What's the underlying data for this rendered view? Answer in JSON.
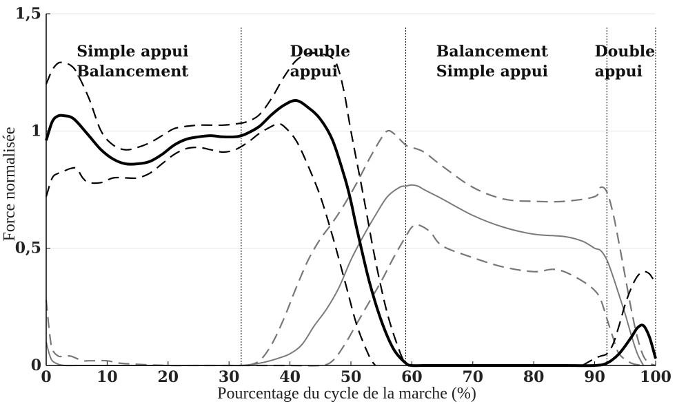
{
  "chart_data": {
    "type": "line",
    "title": "",
    "xlabel": "Pourcentage du cycle de la marche (%)",
    "ylabel": "Force normalisée",
    "xlim": [
      0,
      100
    ],
    "ylim": [
      0,
      1.5
    ],
    "x_ticks": [
      "0",
      "10",
      "20",
      "30",
      "40",
      "50",
      "60",
      "70",
      "80",
      "90",
      "100"
    ],
    "y_ticks": [
      "0",
      "0,5",
      "1",
      "1,5"
    ],
    "grid": "horizontal",
    "phase_boundaries": [
      32,
      59,
      92,
      100
    ],
    "phase_labels": [
      {
        "lines": [
          "Simple appui",
          "Balancement"
        ],
        "x": 5
      },
      {
        "lines": [
          "Double",
          "appui"
        ],
        "x": 40
      },
      {
        "lines": [
          "Balancement",
          "Simple appui"
        ],
        "x": 64
      },
      {
        "lines": [
          "Double",
          "appui"
        ],
        "x": 90
      }
    ],
    "colors": {
      "black": "#000000",
      "gray": "#7a7a7a",
      "gray_dashed": "#777777",
      "phase_line": "#000000",
      "grid": "#e6e6e6"
    },
    "series": [
      {
        "style": "black-solid",
        "x": [
          0,
          1,
          2,
          3,
          4,
          5,
          7,
          9,
          11,
          13,
          15,
          17,
          19,
          21,
          23,
          25,
          27,
          29,
          31,
          32,
          33,
          35,
          37,
          39,
          41,
          43,
          45,
          47,
          49,
          50,
          51,
          53,
          55,
          57,
          59,
          60,
          62,
          65,
          70,
          75,
          80,
          85,
          90,
          92,
          94,
          96,
          97,
          98,
          99,
          100
        ],
        "y": [
          0.96,
          1.04,
          1.065,
          1.065,
          1.06,
          1.04,
          0.98,
          0.92,
          0.88,
          0.86,
          0.86,
          0.87,
          0.9,
          0.94,
          0.965,
          0.975,
          0.98,
          0.975,
          0.975,
          0.98,
          0.99,
          1.02,
          1.07,
          1.11,
          1.13,
          1.1,
          1.05,
          0.96,
          0.8,
          0.7,
          0.58,
          0.36,
          0.19,
          0.07,
          0.01,
          0,
          0,
          0,
          0,
          0,
          0,
          0,
          0,
          0.01,
          0.05,
          0.12,
          0.16,
          0.17,
          0.12,
          0.03
        ]
      },
      {
        "style": "black-dashed-upper",
        "x": [
          0,
          1,
          2,
          3,
          4,
          5,
          7,
          9,
          11,
          13,
          15,
          17,
          19,
          21,
          23,
          25,
          27,
          29,
          31,
          33,
          35,
          37,
          39,
          41,
          43,
          45,
          47,
          48,
          49,
          50,
          52,
          54,
          56,
          58,
          59,
          60
        ],
        "y": [
          1.2,
          1.26,
          1.29,
          1.29,
          1.28,
          1.25,
          1.14,
          1.0,
          0.94,
          0.92,
          0.93,
          0.95,
          0.98,
          1.01,
          1.02,
          1.025,
          1.025,
          1.025,
          1.03,
          1.04,
          1.07,
          1.14,
          1.23,
          1.3,
          1.33,
          1.33,
          1.31,
          1.26,
          1.15,
          1.0,
          0.73,
          0.45,
          0.22,
          0.06,
          0.01,
          0
        ]
      },
      {
        "style": "black-dashed-lower",
        "x": [
          0,
          1,
          2,
          3,
          4,
          5,
          6,
          7,
          9,
          11,
          13,
          15,
          17,
          19,
          21,
          23,
          25,
          27,
          29,
          31,
          33,
          35,
          37,
          38,
          39,
          41,
          43,
          45,
          47,
          49,
          51,
          53,
          54
        ],
        "y": [
          0.72,
          0.8,
          0.82,
          0.83,
          0.84,
          0.84,
          0.8,
          0.78,
          0.78,
          0.8,
          0.8,
          0.8,
          0.82,
          0.86,
          0.9,
          0.925,
          0.93,
          0.92,
          0.91,
          0.92,
          0.95,
          0.99,
          1.02,
          1.03,
          1.02,
          0.96,
          0.85,
          0.72,
          0.55,
          0.36,
          0.17,
          0.04,
          0
        ]
      },
      {
        "style": "black-dashed-late",
        "x": [
          88,
          90,
          91,
          92,
          93,
          94,
          95,
          96,
          97,
          98,
          99,
          100
        ],
        "y": [
          0,
          0.03,
          0.04,
          0.05,
          0.09,
          0.17,
          0.26,
          0.33,
          0.38,
          0.4,
          0.39,
          0.35
        ]
      },
      {
        "style": "gray-solid",
        "x": [
          0,
          0.5,
          1,
          2,
          3,
          5,
          8,
          10,
          20,
          30,
          32,
          34,
          36,
          38,
          40,
          42,
          44,
          46,
          48,
          50,
          52,
          54,
          56,
          58,
          59,
          60,
          61,
          62,
          65,
          70,
          75,
          80,
          85,
          88,
          90,
          91,
          92,
          93,
          94,
          95,
          96,
          97,
          98
        ],
        "y": [
          0.1,
          0.05,
          0.02,
          0.005,
          0,
          0,
          0,
          0,
          0,
          0,
          0,
          0.005,
          0.015,
          0.03,
          0.05,
          0.09,
          0.17,
          0.24,
          0.33,
          0.45,
          0.55,
          0.64,
          0.72,
          0.76,
          0.765,
          0.77,
          0.765,
          0.75,
          0.71,
          0.64,
          0.59,
          0.56,
          0.55,
          0.53,
          0.5,
          0.49,
          0.45,
          0.38,
          0.3,
          0.22,
          0.13,
          0.05,
          0
        ]
      },
      {
        "style": "gray-dashed-upper",
        "x": [
          33,
          35,
          37,
          39,
          41,
          43,
          45,
          47,
          49,
          51,
          53,
          55,
          56,
          57,
          59,
          60,
          62,
          65,
          70,
          75,
          80,
          85,
          90,
          91,
          92,
          93,
          94,
          95,
          96,
          97,
          98,
          99,
          100
        ],
        "y": [
          0,
          0.02,
          0.09,
          0.2,
          0.33,
          0.45,
          0.54,
          0.61,
          0.69,
          0.78,
          0.88,
          0.97,
          1.0,
          0.99,
          0.94,
          0.93,
          0.91,
          0.85,
          0.76,
          0.71,
          0.7,
          0.7,
          0.72,
          0.76,
          0.74,
          0.65,
          0.52,
          0.38,
          0.24,
          0.12,
          0.04,
          0.01,
          0
        ]
      },
      {
        "style": "gray-dashed-lower",
        "x": [
          0,
          0.5,
          1,
          2,
          3,
          4,
          5,
          6,
          7,
          8,
          10,
          12,
          15,
          20,
          25,
          30,
          35,
          40,
          45,
          47,
          49,
          51,
          53,
          55,
          57,
          59,
          60,
          61,
          63,
          65,
          70,
          75,
          80,
          83,
          85,
          88,
          90,
          91,
          92,
          93,
          94,
          96,
          98
        ],
        "y": [
          0.28,
          0.15,
          0.07,
          0.04,
          0.04,
          0.04,
          0.03,
          0.02,
          0.02,
          0.02,
          0.02,
          0.01,
          0.005,
          0,
          0,
          0,
          0,
          0,
          0,
          0.02,
          0.09,
          0.18,
          0.27,
          0.36,
          0.46,
          0.55,
          0.59,
          0.6,
          0.57,
          0.51,
          0.46,
          0.42,
          0.4,
          0.41,
          0.4,
          0.36,
          0.32,
          0.28,
          0.2,
          0.12,
          0.05,
          0.01,
          0
        ]
      }
    ]
  }
}
